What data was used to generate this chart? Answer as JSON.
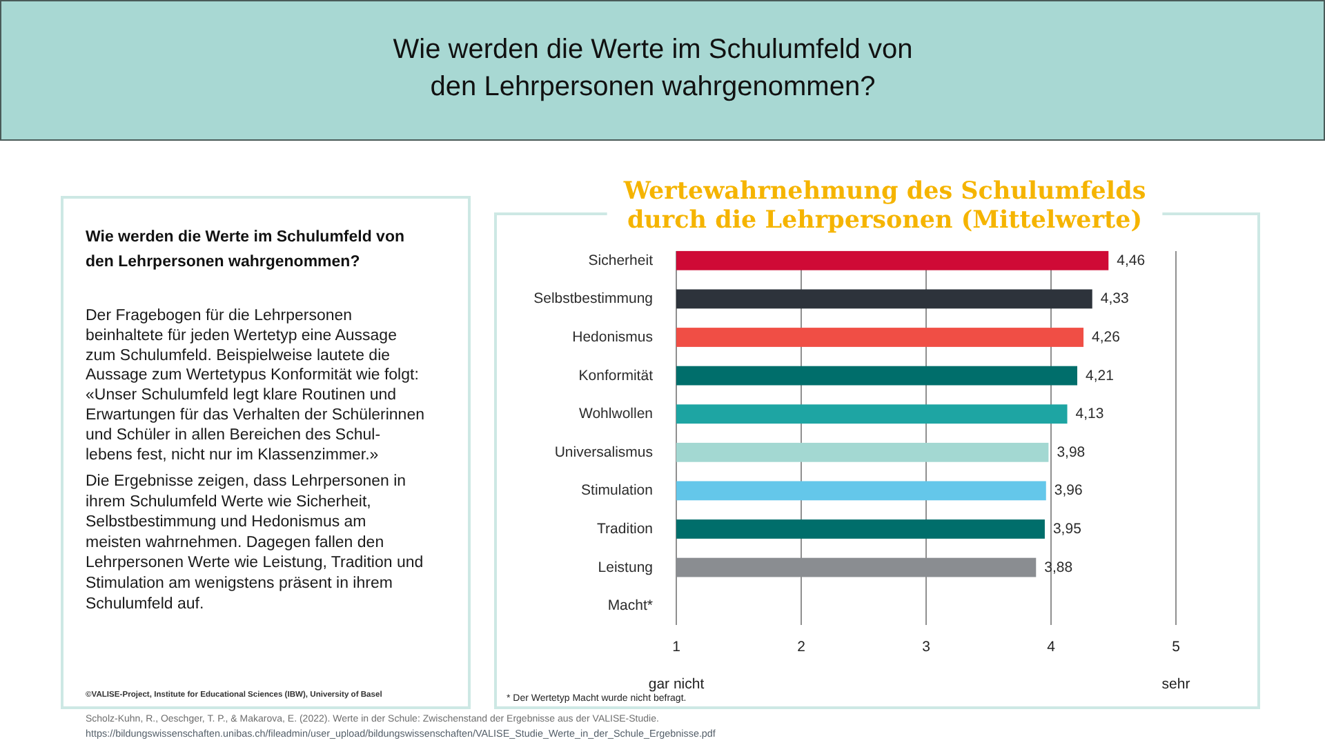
{
  "chart_data": [
    {
      "type": "other",
      "title": "Wie werden die Werte im Schulumfeld von\nden Lehrpersonen wahrgenommen?",
      "subtitle": "Wie werden die Werte im Schulumfeld von\nden Lehrpersonen wahrgenommen?",
      "annotations": [
        "Der Fragebogen für die Lehrpersonen\nbeinhaltete für jeden Wertetyp eine Aussage\nzum Schulumfeld. Beispielweise lautete die\nAussage zum Wertetypus Konformität wie folgt:\n«Unser Schulumfeld legt klare Routinen und\nErwartungen für das Verhalten der Schülerinnen\nund Schüler in allen Bereichen des Schul-\nlebens fest, nicht nur im Klassenzimmer.»",
        "Die Ergebnisse zeigen, dass Lehrpersonen in\nihrem Schulumfeld Werte wie Sicherheit,\nSelbstbestimmung und Hedonismus am\nmeisten wahrnehmen. Dagegen fallen den\nLehrpersonen Werte wie Leistung, Tradition und\nStimulation am wenigstens präsent in ihrem\nSchulumfeld auf.",
        "©VALISE-Project, Institute for Educational Sciences (IBW), University of Basel",
        "Scholz-Kuhn, R., Oeschger, T. P., & Makarova, E. (2022). Werte in der Schule: Zwischenstand der Ergebnisse aus der VALISE-Studie.",
        "https://bildungswissenschaften.unibas.ch/fileadmin/user_upload/bildungswissenschaften/VALISE_Studie_Werte_in_der_Schule_Ergebnisse.pdf"
      ]
    },
    {
      "type": "bar",
      "orientation": "horizontal",
      "title": "Wertewahrnehmung des Schulumfelds\ndurch die Lehrpersonen (Mittelwerte)",
      "categories": [
        "Sicherheit",
        "Selbstbestimmung",
        "Hedonismus",
        "Konformität",
        "Wohlwollen",
        "Universalismus",
        "Stimulation",
        "Tradition",
        "Leistung",
        "Macht*"
      ],
      "values": [
        4.46,
        4.33,
        4.26,
        4.21,
        4.13,
        3.98,
        3.96,
        3.95,
        3.88,
        null
      ],
      "colors": [
        "#cf0a36",
        "#2d333b",
        "#f04e45",
        "#006e6b",
        "#1ea5a3",
        "#a3d8d2",
        "#64c7ea",
        "#006e6b",
        "#8a8d91",
        null
      ],
      "value_labels": [
        "4,46",
        "4,33",
        "4,26",
        "4,21",
        "4,13",
        "3,98",
        "3,96",
        "3,95",
        "3,88",
        null
      ],
      "xlim": [
        1,
        5
      ],
      "xticks": [
        1,
        2,
        3,
        4,
        5
      ],
      "grid": "x",
      "annotations": [
        "gar nicht",
        "sehr",
        "* Der Wertetyp Macht wurde nicht befragt."
      ]
    }
  ]
}
